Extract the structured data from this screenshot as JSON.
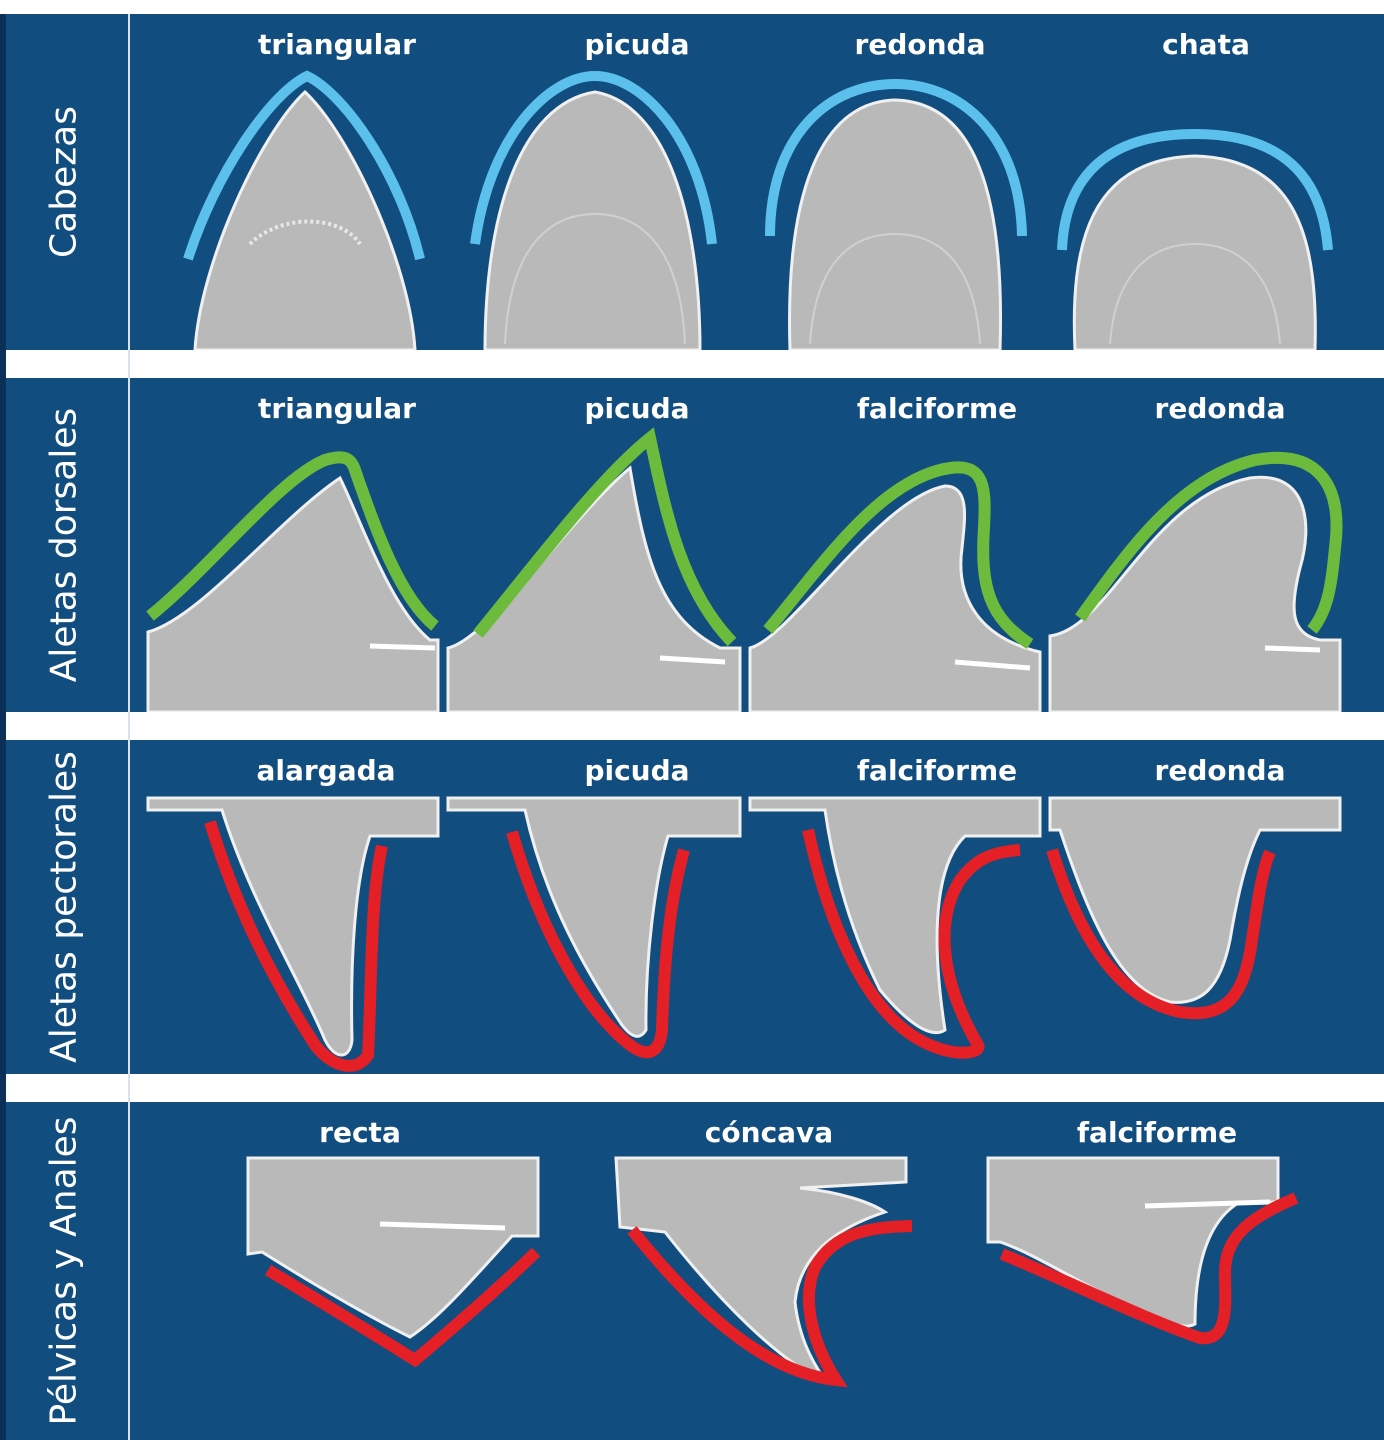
{
  "rows": [
    {
      "label": "Cabezas",
      "shapes": [
        "triangular",
        "picuda",
        "redonda",
        "chata"
      ]
    },
    {
      "label": "Aletas dorsales",
      "shapes": [
        "triangular",
        "picuda",
        "falciforme",
        "redonda"
      ]
    },
    {
      "label": "Aletas pectorales",
      "shapes": [
        "alargada",
        "picuda",
        "falciforme",
        "redonda"
      ]
    },
    {
      "label": "Pélvicas y Anales",
      "shapes": [
        "recta",
        "cóncava",
        "falciforme"
      ]
    }
  ],
  "colors": {
    "background": "#124d80",
    "head_outline": "#5bc1ec",
    "dorsal_outline": "#6dbb3c",
    "pectoral_outline": "#e41f26",
    "pelvic_outline": "#e41f26",
    "fin_fill": "#b9b9b9"
  }
}
